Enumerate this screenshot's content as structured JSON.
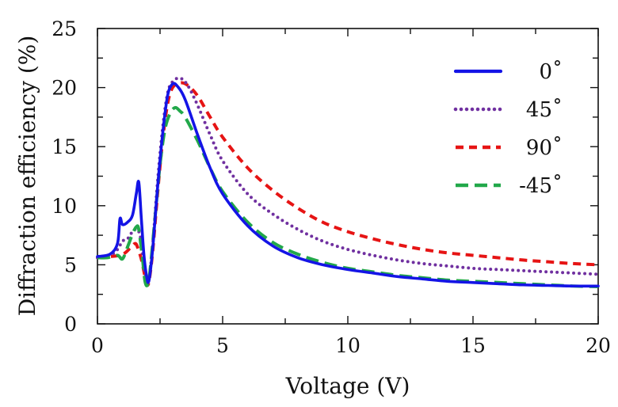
{
  "chart_data": {
    "type": "line",
    "title": "",
    "xlabel": "Voltage (V)",
    "ylabel": "Diffraction efficiency (%)",
    "xlim": [
      0,
      20
    ],
    "ylim": [
      0,
      25
    ],
    "xticks": [
      "0",
      "5",
      "10",
      "15",
      "20"
    ],
    "yticks": [
      "0",
      "5",
      "10",
      "15",
      "20",
      "25"
    ],
    "grid": false,
    "legend_position": "top-right",
    "series": [
      {
        "name": "0˚",
        "color": "#1414e6",
        "dash": "solid",
        "x": [
          0,
          0.5,
          0.8,
          0.9,
          1.0,
          1.2,
          1.4,
          1.55,
          1.65,
          1.75,
          1.85,
          1.95,
          2.05,
          2.2,
          2.4,
          2.6,
          2.8,
          3.0,
          3.2,
          3.5,
          4.0,
          4.5,
          5.0,
          6.0,
          7.0,
          8.0,
          9.0,
          10.0,
          11.0,
          12.0,
          13.0,
          14.0,
          15.0,
          16.0,
          17.0,
          18.0,
          19.0,
          20.0
        ],
        "y": [
          5.7,
          5.9,
          6.8,
          8.9,
          8.4,
          8.6,
          9.2,
          11.0,
          12.0,
          9.0,
          6.0,
          4.2,
          3.6,
          6.2,
          11.5,
          16.0,
          19.3,
          20.3,
          20.1,
          19.0,
          16.0,
          13.2,
          11.0,
          8.3,
          6.6,
          5.6,
          5.0,
          4.6,
          4.3,
          4.0,
          3.8,
          3.6,
          3.5,
          3.4,
          3.3,
          3.25,
          3.2,
          3.2
        ]
      },
      {
        "name": "45˚",
        "color": "#7030a0",
        "dash": "dotted",
        "x": [
          0,
          0.5,
          0.8,
          1.0,
          1.2,
          1.4,
          1.6,
          1.75,
          1.85,
          1.95,
          2.05,
          2.2,
          2.4,
          2.6,
          2.8,
          3.0,
          3.3,
          3.6,
          4.0,
          4.5,
          5.0,
          6.0,
          7.0,
          8.0,
          9.0,
          10.0,
          11.0,
          12.0,
          13.0,
          14.0,
          15.0,
          16.0,
          17.0,
          18.0,
          19.0,
          20.0
        ],
        "y": [
          5.6,
          5.8,
          6.3,
          7.0,
          7.2,
          7.8,
          8.0,
          7.0,
          5.0,
          3.8,
          3.7,
          6.5,
          12.0,
          16.5,
          19.5,
          20.5,
          20.8,
          20.2,
          18.5,
          16.0,
          13.8,
          11.0,
          9.3,
          8.0,
          7.0,
          6.3,
          5.8,
          5.4,
          5.1,
          4.9,
          4.7,
          4.6,
          4.5,
          4.4,
          4.3,
          4.2
        ]
      },
      {
        "name": "90˚",
        "color": "#e61414",
        "dash": "dashed",
        "x": [
          0,
          0.5,
          0.9,
          1.1,
          1.3,
          1.5,
          1.6,
          1.75,
          1.85,
          1.95,
          2.05,
          2.2,
          2.4,
          2.6,
          2.8,
          3.0,
          3.3,
          3.6,
          4.0,
          4.5,
          5.0,
          6.0,
          7.0,
          8.0,
          9.0,
          10.0,
          11.0,
          12.0,
          13.0,
          14.0,
          15.0,
          16.0,
          17.0,
          18.0,
          19.0,
          20.0
        ],
        "y": [
          5.6,
          5.7,
          5.8,
          6.0,
          6.4,
          6.8,
          6.5,
          5.5,
          4.5,
          3.5,
          3.5,
          6.0,
          11.0,
          15.5,
          18.6,
          20.0,
          20.4,
          20.2,
          19.3,
          17.5,
          15.8,
          13.2,
          11.3,
          9.8,
          8.6,
          7.8,
          7.2,
          6.7,
          6.3,
          6.0,
          5.8,
          5.6,
          5.4,
          5.25,
          5.1,
          5.0
        ]
      },
      {
        "name": "-45˚",
        "color": "#22a84a",
        "dash": "longdash",
        "x": [
          0,
          0.4,
          0.8,
          1.0,
          1.2,
          1.4,
          1.55,
          1.65,
          1.8,
          1.9,
          2.0,
          2.1,
          2.3,
          2.5,
          2.7,
          2.9,
          3.1,
          3.3,
          3.5,
          4.0,
          4.5,
          5.0,
          6.0,
          7.0,
          8.0,
          9.0,
          10.0,
          11.0,
          12.0,
          13.0,
          14.0,
          15.0,
          16.0,
          17.0,
          18.0,
          19.0,
          20.0
        ],
        "y": [
          5.6,
          5.6,
          5.8,
          5.5,
          6.5,
          7.6,
          8.2,
          8.0,
          5.5,
          3.6,
          3.3,
          4.5,
          9.0,
          13.5,
          16.5,
          17.8,
          18.3,
          18.0,
          17.5,
          15.5,
          13.2,
          11.2,
          8.6,
          6.9,
          5.9,
          5.2,
          4.7,
          4.4,
          4.1,
          3.9,
          3.7,
          3.6,
          3.5,
          3.4,
          3.3,
          3.2,
          3.15
        ]
      }
    ]
  }
}
